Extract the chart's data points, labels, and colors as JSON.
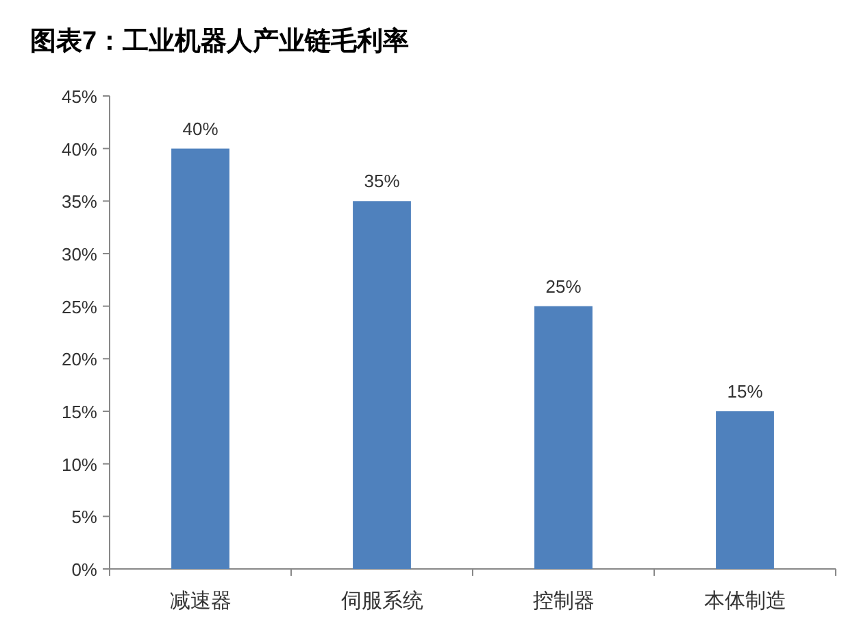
{
  "chart_data": {
    "type": "bar",
    "title": "图表7：工业机器人产业链毛利率",
    "categories": [
      "减速器",
      "伺服系统",
      "控制器",
      "本体制造"
    ],
    "values": [
      40,
      35,
      25,
      15
    ],
    "color": "#4f81bd",
    "value_labels": [
      "40%",
      "35%",
      "25%",
      "15%"
    ],
    "ylim": [
      0,
      45
    ],
    "yticks": [
      {
        "value": 0,
        "label": "0%"
      },
      {
        "value": 5,
        "label": "5%"
      },
      {
        "value": 10,
        "label": "10%"
      },
      {
        "value": 15,
        "label": "15%"
      },
      {
        "value": 20,
        "label": "20%"
      },
      {
        "value": 25,
        "label": "25%"
      },
      {
        "value": 30,
        "label": "30%"
      },
      {
        "value": 35,
        "label": "35%"
      },
      {
        "value": 40,
        "label": "40%"
      },
      {
        "value": 45,
        "label": "45%"
      }
    ]
  }
}
